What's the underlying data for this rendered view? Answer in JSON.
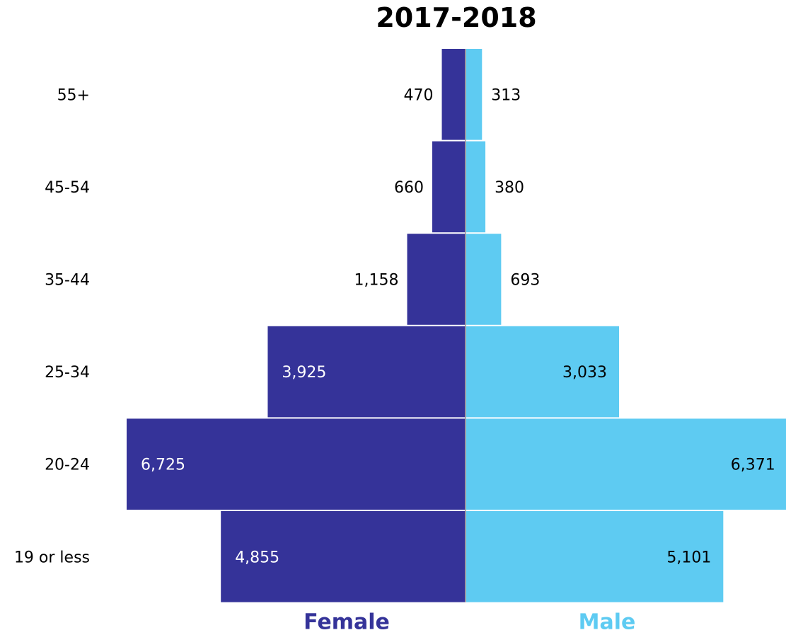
{
  "chart_data": {
    "type": "bar",
    "orientation": "horizontal",
    "layout": "population-pyramid",
    "title": "2017-2018",
    "categories": [
      "55+",
      "45-54",
      "35-44",
      "25-34",
      "20-24",
      "19 or less"
    ],
    "series": [
      {
        "name": "Female",
        "values": [
          470,
          660,
          1158,
          3925,
          6725,
          4855
        ],
        "labels": [
          "470",
          "660",
          "1,158",
          "3,925",
          "6,725",
          "4,855"
        ],
        "color": "#353399",
        "side": "left"
      },
      {
        "name": "Male",
        "values": [
          313,
          380,
          693,
          3033,
          6371,
          5101
        ],
        "labels": [
          "313",
          "380",
          "693",
          "3,033",
          "6,371",
          "5,101"
        ],
        "color": "#5ecbf2",
        "side": "right"
      }
    ],
    "xlim": [
      0,
      6725
    ],
    "grid": false,
    "legend": "bottom"
  }
}
